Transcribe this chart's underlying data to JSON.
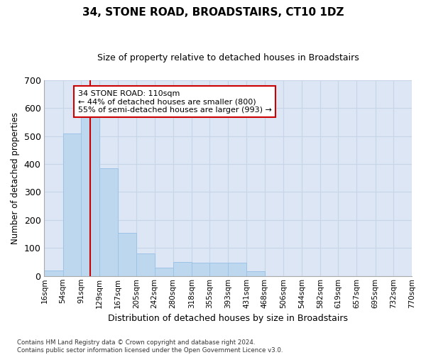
{
  "title": "34, STONE ROAD, BROADSTAIRS, CT10 1DZ",
  "subtitle": "Size of property relative to detached houses in Broadstairs",
  "xlabel": "Distribution of detached houses by size in Broadstairs",
  "ylabel": "Number of detached properties",
  "footer_line1": "Contains HM Land Registry data © Crown copyright and database right 2024.",
  "footer_line2": "Contains public sector information licensed under the Open Government Licence v3.0.",
  "bin_labels": [
    "16sqm",
    "54sqm",
    "91sqm",
    "129sqm",
    "167sqm",
    "205sqm",
    "242sqm",
    "280sqm",
    "318sqm",
    "355sqm",
    "393sqm",
    "431sqm",
    "468sqm",
    "506sqm",
    "544sqm",
    "582sqm",
    "619sqm",
    "657sqm",
    "695sqm",
    "732sqm",
    "770sqm"
  ],
  "bar_values": [
    20,
    510,
    575,
    385,
    155,
    80,
    30,
    50,
    48,
    48,
    48,
    18,
    0,
    0,
    0,
    0,
    0,
    0,
    0,
    0
  ],
  "bar_color": "#bdd7ee",
  "bar_edge_color": "#9dc3e6",
  "grid_color": "#c8d4e8",
  "bg_color": "#dce6f5",
  "vline_x": 110,
  "vline_color": "#cc0000",
  "annotation_line1": "34 STONE ROAD: 110sqm",
  "annotation_line2": "← 44% of detached houses are smaller (800)",
  "annotation_line3": "55% of semi-detached houses are larger (993) →",
  "annotation_box_color": "#cc0000",
  "ylim": [
    0,
    700
  ],
  "yticks": [
    0,
    100,
    200,
    300,
    400,
    500,
    600,
    700
  ],
  "bin_starts": [
    16,
    54,
    91,
    129,
    167,
    205,
    242,
    280,
    318,
    355,
    393,
    431,
    468,
    506,
    544,
    582,
    619,
    657,
    695,
    732
  ],
  "bin_width": 38,
  "xlim_min": 16,
  "xlim_max": 770
}
